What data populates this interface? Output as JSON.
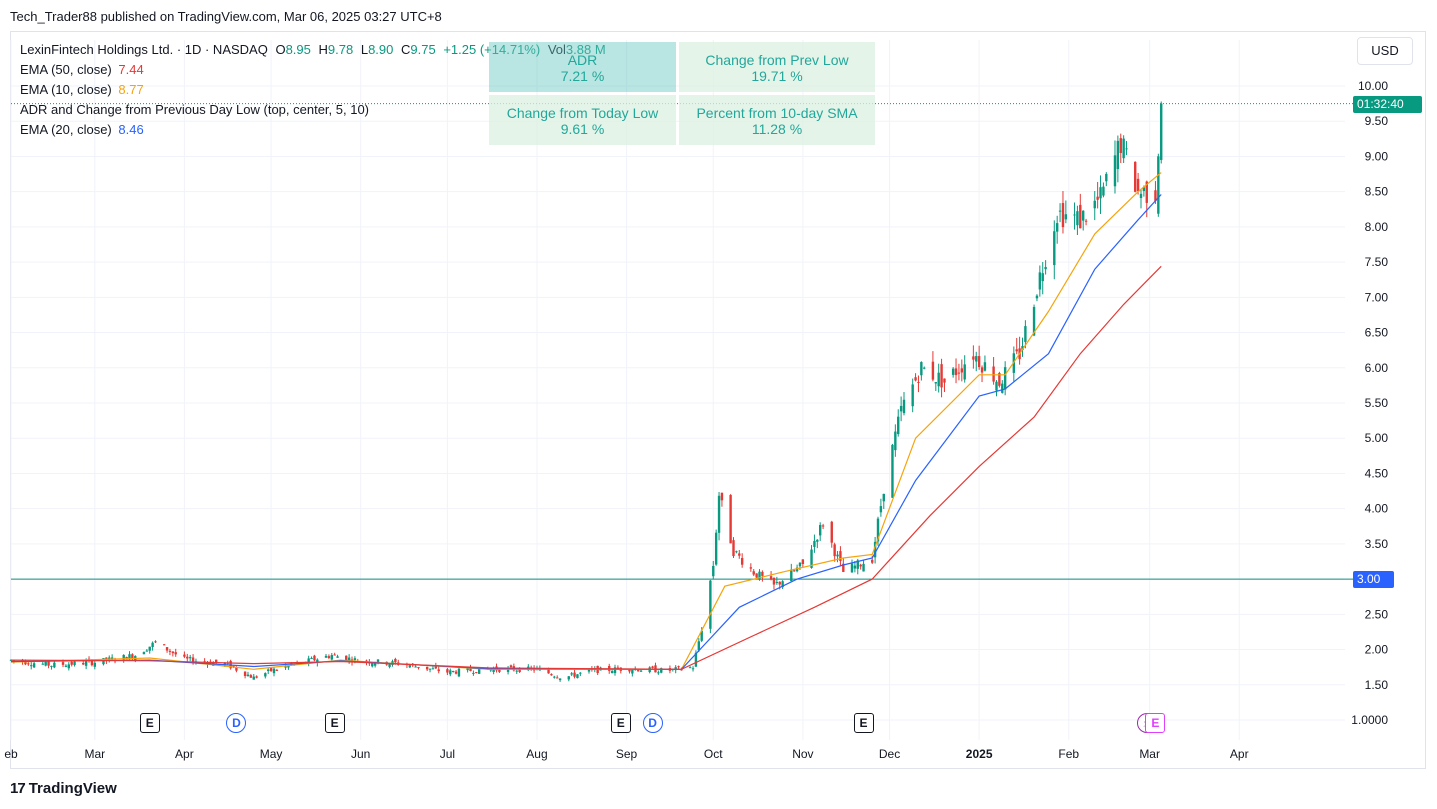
{
  "header": {
    "published": "Tech_Trader88 published on TradingView.com, Mar 06, 2025 03:27 UTC+8"
  },
  "legend": {
    "symbol": "LexinFintech Holdings Ltd. · 1D · NASDAQ",
    "o_label": "O",
    "o": "8.95",
    "h_label": "H",
    "h": "9.78",
    "l_label": "L",
    "l": "8.90",
    "c_label": "C",
    "c": "9.75",
    "change": "+1.25 (+14.71%)",
    "vol_label": "Vol",
    "vol": "3.88 M",
    "ema50_label": "EMA (50, close)",
    "ema50": "7.44",
    "ema10_label": "EMA (10, close)",
    "ema10": "8.77",
    "indicator_label": "ADR and Change from Previous Day Low (top, center, 5, 10)",
    "ema20_label": "EMA (20, close)",
    "ema20": "8.46"
  },
  "table": {
    "adr_title": "ADR",
    "adr": "7.21 %",
    "prev_low_title": "Change from Prev Low",
    "prev_low": "19.71 %",
    "today_low_title": "Change from Today Low",
    "today_low": "9.61 %",
    "sma_title": "Percent from 10-day SMA",
    "sma": "11.28 %"
  },
  "currency": "USD",
  "price_tag": "01:32:40",
  "level_tag": "3.00",
  "footer": {
    "brand": "TradingView",
    "logo": "17"
  },
  "colors": {
    "up": "#089981",
    "down": "#e53935",
    "ema10": "#f5a40c",
    "ema20": "#2962ff",
    "ema50": "#e53935",
    "hline": "#0e8c7f"
  },
  "events": [
    {
      "type": "E",
      "date": "2024-03-20"
    },
    {
      "type": "D",
      "date": "2024-04-19"
    },
    {
      "type": "E",
      "date": "2024-05-23"
    },
    {
      "type": "E",
      "date": "2024-08-30"
    },
    {
      "type": "D",
      "date": "2024-09-10"
    },
    {
      "type": "E",
      "date": "2024-11-22"
    },
    {
      "type": "⚡",
      "date": "2025-02-28"
    },
    {
      "type": "E",
      "date": "2025-03-03"
    }
  ],
  "chart_data": {
    "type": "candlestick",
    "y_ticks": [
      "1.0000",
      "1.50",
      "2.00",
      "2.50",
      "3.00",
      "3.50",
      "4.00",
      "4.50",
      "5.00",
      "5.50",
      "6.00",
      "6.50",
      "7.00",
      "7.50",
      "8.00",
      "8.50",
      "9.00",
      "9.50",
      "10.00"
    ],
    "y_ticks_values": [
      1.0,
      1.5,
      2.0,
      2.5,
      3.0,
      3.5,
      4.0,
      4.5,
      5.0,
      5.5,
      6.0,
      6.5,
      7.0,
      7.5,
      8.0,
      8.5,
      9.0,
      9.5,
      10.0
    ],
    "x_ticks": [
      {
        "label": "eb",
        "date": "2024-02-01"
      },
      {
        "label": "Mar",
        "date": "2024-03-01"
      },
      {
        "label": "Apr",
        "date": "2024-04-01"
      },
      {
        "label": "May",
        "date": "2024-05-01"
      },
      {
        "label": "Jun",
        "date": "2024-06-01"
      },
      {
        "label": "Jul",
        "date": "2024-07-01"
      },
      {
        "label": "Aug",
        "date": "2024-08-01"
      },
      {
        "label": "Sep",
        "date": "2024-09-01"
      },
      {
        "label": "Oct",
        "date": "2024-10-01"
      },
      {
        "label": "Nov",
        "date": "2024-11-01"
      },
      {
        "label": "Dec",
        "date": "2024-12-01"
      },
      {
        "label": "2025",
        "date": "2025-01-01",
        "bold": true
      },
      {
        "label": "Feb",
        "date": "2025-02-01"
      },
      {
        "label": "Mar",
        "date": "2025-03-01"
      },
      {
        "label": "Apr",
        "date": "2025-04-01"
      }
    ],
    "horizontal_line": 3.0,
    "last_price": 9.75,
    "ohlc_points": [
      {
        "date": "2024-02-01",
        "close": 1.85
      },
      {
        "date": "2024-02-15",
        "close": 1.78
      },
      {
        "date": "2024-03-01",
        "close": 1.82
      },
      {
        "date": "2024-03-15",
        "close": 1.92
      },
      {
        "date": "2024-03-22",
        "close": 2.1
      },
      {
        "date": "2024-04-01",
        "close": 1.86
      },
      {
        "date": "2024-04-15",
        "close": 1.8
      },
      {
        "date": "2024-04-25",
        "close": 1.6
      },
      {
        "date": "2024-05-01",
        "close": 1.7
      },
      {
        "date": "2024-05-15",
        "close": 1.85
      },
      {
        "date": "2024-05-22",
        "close": 1.92
      },
      {
        "date": "2024-06-01",
        "close": 1.84
      },
      {
        "date": "2024-06-15",
        "close": 1.8
      },
      {
        "date": "2024-07-01",
        "close": 1.68
      },
      {
        "date": "2024-07-15",
        "close": 1.72
      },
      {
        "date": "2024-08-01",
        "close": 1.72
      },
      {
        "date": "2024-08-10",
        "close": 1.6
      },
      {
        "date": "2024-08-20",
        "close": 1.7
      },
      {
        "date": "2024-09-01",
        "close": 1.73
      },
      {
        "date": "2024-09-15",
        "close": 1.7
      },
      {
        "date": "2024-09-24",
        "close": 1.75
      },
      {
        "date": "2024-09-27",
        "close": 2.3
      },
      {
        "date": "2024-10-01",
        "close": 3.2
      },
      {
        "date": "2024-10-03",
        "close": 4.2
      },
      {
        "date": "2024-10-08",
        "close": 3.4
      },
      {
        "date": "2024-10-15",
        "close": 3.1
      },
      {
        "date": "2024-10-22",
        "close": 2.9
      },
      {
        "date": "2024-11-01",
        "close": 3.2
      },
      {
        "date": "2024-11-08",
        "close": 3.8
      },
      {
        "date": "2024-11-15",
        "close": 3.1
      },
      {
        "date": "2024-11-25",
        "close": 3.3
      },
      {
        "date": "2024-11-29",
        "close": 4.3
      },
      {
        "date": "2024-12-05",
        "close": 5.4
      },
      {
        "date": "2024-12-12",
        "close": 6.0
      },
      {
        "date": "2024-12-20",
        "close": 5.8
      },
      {
        "date": "2024-12-30",
        "close": 6.2
      },
      {
        "date": "2025-01-08",
        "close": 5.8
      },
      {
        "date": "2025-01-15",
        "close": 6.2
      },
      {
        "date": "2025-01-22",
        "close": 7.3
      },
      {
        "date": "2025-01-28",
        "close": 8.2
      },
      {
        "date": "2025-02-05",
        "close": 8.1
      },
      {
        "date": "2025-02-12",
        "close": 8.4
      },
      {
        "date": "2025-02-19",
        "close": 9.2
      },
      {
        "date": "2025-02-25",
        "close": 8.5
      },
      {
        "date": "2025-03-03",
        "close": 8.5
      },
      {
        "date": "2025-03-05",
        "close": 9.75
      }
    ],
    "series": [
      {
        "name": "EMA (10, close)",
        "last": 8.77,
        "color": "#f5a40c",
        "points": [
          [
            "2024-02-01",
            1.82
          ],
          [
            "2024-03-20",
            1.88
          ],
          [
            "2024-04-25",
            1.72
          ],
          [
            "2024-05-25",
            1.85
          ],
          [
            "2024-07-15",
            1.72
          ],
          [
            "2024-09-20",
            1.72
          ],
          [
            "2024-10-05",
            2.9
          ],
          [
            "2024-10-25",
            3.1
          ],
          [
            "2024-11-15",
            3.3
          ],
          [
            "2024-11-25",
            3.35
          ],
          [
            "2024-12-10",
            5.0
          ],
          [
            "2025-01-01",
            5.9
          ],
          [
            "2025-01-10",
            5.9
          ],
          [
            "2025-01-25",
            6.8
          ],
          [
            "2025-02-10",
            7.9
          ],
          [
            "2025-02-25",
            8.5
          ],
          [
            "2025-03-05",
            8.77
          ]
        ]
      },
      {
        "name": "EMA (20, close)",
        "last": 8.46,
        "color": "#2962ff",
        "points": [
          [
            "2024-02-01",
            1.83
          ],
          [
            "2024-03-20",
            1.85
          ],
          [
            "2024-04-25",
            1.76
          ],
          [
            "2024-05-25",
            1.84
          ],
          [
            "2024-07-15",
            1.73
          ],
          [
            "2024-09-20",
            1.72
          ],
          [
            "2024-10-10",
            2.6
          ],
          [
            "2024-10-30",
            3.0
          ],
          [
            "2024-11-15",
            3.2
          ],
          [
            "2024-11-25",
            3.3
          ],
          [
            "2024-12-10",
            4.4
          ],
          [
            "2025-01-01",
            5.6
          ],
          [
            "2025-01-10",
            5.7
          ],
          [
            "2025-01-25",
            6.2
          ],
          [
            "2025-02-10",
            7.4
          ],
          [
            "2025-02-25",
            8.1
          ],
          [
            "2025-03-05",
            8.46
          ]
        ]
      },
      {
        "name": "EMA (50, close)",
        "last": 7.44,
        "color": "#e53935",
        "points": [
          [
            "2024-02-01",
            1.85
          ],
          [
            "2024-03-20",
            1.84
          ],
          [
            "2024-04-25",
            1.8
          ],
          [
            "2024-05-25",
            1.83
          ],
          [
            "2024-07-15",
            1.74
          ],
          [
            "2024-09-20",
            1.72
          ],
          [
            "2024-10-15",
            2.2
          ],
          [
            "2024-11-05",
            2.6
          ],
          [
            "2024-11-25",
            3.0
          ],
          [
            "2024-12-15",
            3.9
          ],
          [
            "2025-01-01",
            4.6
          ],
          [
            "2025-01-20",
            5.3
          ],
          [
            "2025-02-05",
            6.2
          ],
          [
            "2025-02-20",
            6.9
          ],
          [
            "2025-03-05",
            7.44
          ]
        ]
      }
    ]
  }
}
